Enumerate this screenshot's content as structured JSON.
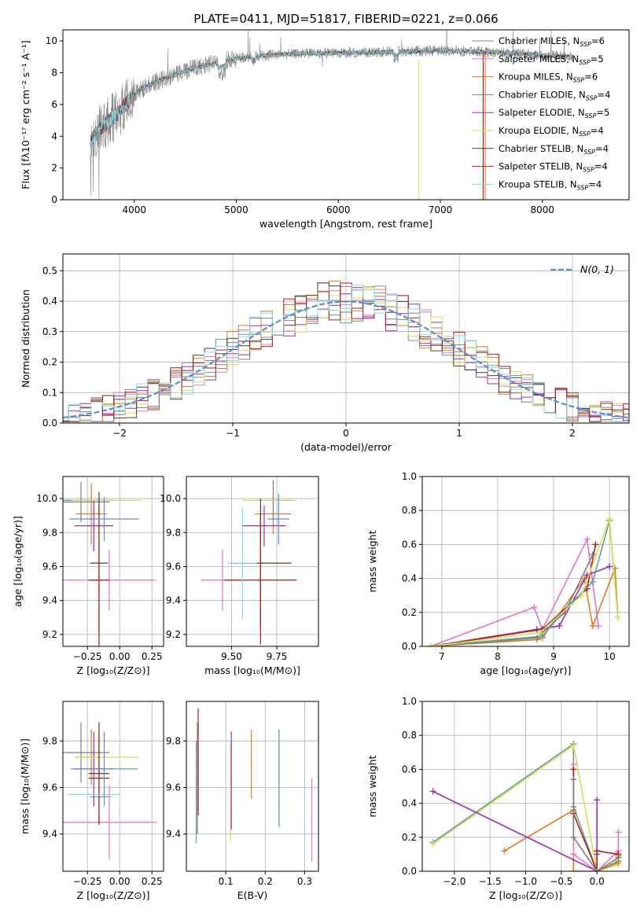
{
  "figure_title": "PLATE=0411, MJD=51817, FIBERID=0221, z=0.066",
  "colors": {
    "chabrier_miles": "#5f9ea0",
    "salpeter_miles": "#e377c2",
    "kroupa_miles": "#e07b20",
    "chabrier_elodie": "#7f7f7f",
    "salpeter_elodie": "#9b30b5",
    "kroupa_elodie": "#d4e157",
    "chabrier_stelib": "#5a3a22",
    "salpeter_stelib": "#b01c1c",
    "kroupa_stelib": "#80deea",
    "normal": "#5b8dd6",
    "grid": "#b0b0b0"
  },
  "chart_data": [
    {
      "id": "spectrum",
      "type": "line",
      "title": "PLATE=0411, MJD=51817, FIBERID=0221, z=0.066",
      "xlabel": "wavelength [Angstrom, rest frame]",
      "ylabel": "Flux [fλ10⁻¹⁷ erg cm⁻² s⁻¹ A⁻¹]",
      "xlim": [
        3300,
        8850
      ],
      "ylim": [
        0,
        10.7
      ],
      "xticks": [
        "4000",
        "5000",
        "6000",
        "7000",
        "8000"
      ],
      "yticks": [
        "0",
        "2",
        "4",
        "6",
        "8",
        "10"
      ],
      "grid": false,
      "legend_position": "top-right",
      "data_range": [
        3570,
        8300
      ],
      "continuum_x": [
        3570,
        3650,
        3750,
        3850,
        3950,
        4050,
        4200,
        4400,
        4600,
        4800,
        5000,
        5300,
        5600,
        6000,
        6500,
        7000,
        7500,
        8000,
        8300
      ],
      "continuum_y": [
        3.6,
        4.4,
        4.9,
        5.5,
        6.3,
        6.9,
        7.4,
        7.9,
        8.3,
        8.6,
        8.9,
        9.1,
        9.2,
        9.25,
        9.3,
        9.4,
        9.3,
        9.1,
        9.0
      ],
      "series": [
        {
          "label": "Chabrier MILES, N",
          "sub": "SSP",
          "value": "=6",
          "color_key": "chabrier_miles"
        },
        {
          "label": "Salpeter MILES, N",
          "sub": "SSP",
          "value": "=5",
          "color_key": "salpeter_miles"
        },
        {
          "label": "Kroupa MILES, N",
          "sub": "SSP",
          "value": "=6",
          "color_key": "kroupa_miles"
        },
        {
          "label": "Chabrier ELODIE, N",
          "sub": "SSP",
          "value": "=4",
          "color_key": "chabrier_elodie"
        },
        {
          "label": "Salpeter ELODIE, N",
          "sub": "SSP",
          "value": "=5",
          "color_key": "salpeter_elodie"
        },
        {
          "label": "Kroupa ELODIE, N",
          "sub": "SSP",
          "value": "=4",
          "color_key": "kroupa_elodie"
        },
        {
          "label": "Chabrier STELIB, N",
          "sub": "SSP",
          "value": "=4",
          "color_key": "chabrier_stelib"
        },
        {
          "label": "Salpeter STELIB, N",
          "sub": "SSP",
          "value": "=4",
          "color_key": "salpeter_stelib"
        },
        {
          "label": "Kroupa STELIB, N",
          "sub": "SSP",
          "value": "=4",
          "color_key": "kroupa_stelib"
        }
      ]
    },
    {
      "id": "residuals",
      "type": "bar",
      "xlabel": "(data-model)/error",
      "ylabel": "Normed distribution",
      "xlim": [
        -2.5,
        2.5
      ],
      "ylim": [
        0,
        0.555
      ],
      "xticks": [
        "−2",
        "−1",
        "0",
        "1",
        "2"
      ],
      "yticks": [
        "0.0",
        "0.1",
        "0.2",
        "0.3",
        "0.4",
        "0.5"
      ],
      "grid": true,
      "legend_position": "top-right",
      "legend_label": "N(0, 1)",
      "bin_width": 0.1
    },
    {
      "id": "age_vs_Z",
      "type": "scatter",
      "xlabel": "Z [log₁₀(Z/Z⊙)]",
      "ylabel": "age  [log₁₀(age/yr)]",
      "xlim": [
        -0.44,
        0.34
      ],
      "ylim": [
        9.13,
        10.13
      ],
      "xticks": [
        "−0.25",
        "0.00",
        "0.25"
      ],
      "yticks": [
        "9.2",
        "9.4",
        "9.6",
        "9.8",
        "10.0"
      ],
      "grid": true,
      "points": [
        {
          "color_key": "chabrier_miles",
          "x": -0.3,
          "y": 9.99,
          "xerr": 0.25,
          "yerr": 0.0
        },
        {
          "color_key": "salpeter_miles",
          "x": -0.08,
          "y": 9.52,
          "xerr": 0.36,
          "yerr": 0.18
        },
        {
          "color_key": "kroupa_miles",
          "x": -0.22,
          "y": 9.91,
          "xerr": 0.12,
          "yerr": 0.18
        },
        {
          "color_key": "chabrier_elodie",
          "x": -0.3,
          "y": 9.98,
          "xerr": 0.22,
          "yerr": 0.12
        },
        {
          "color_key": "salpeter_elodie",
          "x": -0.2,
          "y": 9.84,
          "xerr": 0.15,
          "yerr": 0.15
        },
        {
          "color_key": "kroupa_elodie",
          "x": -0.1,
          "y": 9.99,
          "xerr": 0.27,
          "yerr": 0.0
        },
        {
          "color_key": "chabrier_stelib",
          "x": -0.16,
          "y": 9.62,
          "xerr": 0.07,
          "yerr": 0.42
        },
        {
          "color_key": "salpeter_stelib",
          "x": -0.16,
          "y": 9.52,
          "xerr": 0.08,
          "yerr": 0.44
        },
        {
          "color_key": "normal",
          "x": -0.12,
          "y": 9.88,
          "xerr": 0.27,
          "yerr": 0.13
        }
      ]
    },
    {
      "id": "age_vs_mass",
      "type": "scatter",
      "xlabel": "mass [log₁₀(M/M⊙)]",
      "xlim": [
        9.25,
        9.98
      ],
      "ylim": [
        9.13,
        10.13
      ],
      "xticks": [
        "9.50",
        "9.75"
      ],
      "yticks": [
        "9.2",
        "9.4",
        "9.6",
        "9.8",
        "10.0"
      ],
      "grid": true,
      "points": [
        {
          "color_key": "salpeter_miles",
          "x": 9.45,
          "y": 9.52,
          "xerr": 0.12,
          "yerr": 0.18
        },
        {
          "color_key": "kroupa_miles",
          "x": 9.73,
          "y": 9.91,
          "xerr": 0.1,
          "yerr": 0.12
        },
        {
          "color_key": "chabrier_elodie",
          "x": 9.73,
          "y": 9.99,
          "xerr": 0.1,
          "yerr": 0.12
        },
        {
          "color_key": "salpeter_elodie",
          "x": 9.68,
          "y": 9.84,
          "xerr": 0.12,
          "yerr": 0.12
        },
        {
          "color_key": "kroupa_elodie",
          "x": 9.71,
          "y": 9.99,
          "xerr": 0.15,
          "yerr": 0.0
        },
        {
          "color_key": "chabrier_stelib",
          "x": 9.66,
          "y": 9.62,
          "xerr": 0.17,
          "yerr": 0.38
        },
        {
          "color_key": "salpeter_stelib",
          "x": 9.66,
          "y": 9.52,
          "xerr": 0.2,
          "yerr": 0.38
        },
        {
          "color_key": "normal",
          "x": 9.76,
          "y": 9.88,
          "xerr": 0.06,
          "yerr": 0.15
        },
        {
          "color_key": "kroupa_stelib",
          "x": 9.56,
          "y": 9.62,
          "xerr": 0.08,
          "yerr": 0.33
        }
      ]
    },
    {
      "id": "mass_weight_vs_age",
      "type": "line",
      "xlabel": "age  [log₁₀(age/yr)]",
      "ylabel": "mass weight",
      "xlim": [
        6.65,
        10.35
      ],
      "ylim": [
        0,
        1
      ],
      "xticks": [
        "7",
        "8",
        "9",
        "10"
      ],
      "yticks": [
        "0.0",
        "0.2",
        "0.4",
        "0.6",
        "0.8",
        "1.0"
      ],
      "grid": true,
      "series": [
        {
          "color_key": "salpeter_miles",
          "x": [
            6.8,
            8.65,
            8.8,
            9.6,
            9.8
          ],
          "y": [
            0.0,
            0.23,
            0.1,
            0.63,
            0.12
          ]
        },
        {
          "color_key": "kroupa_miles",
          "x": [
            6.8,
            8.7,
            8.8,
            9.55,
            9.7,
            10.1,
            10.15
          ],
          "y": [
            0.0,
            0.04,
            0.05,
            0.4,
            0.12,
            0.46,
            0.17
          ]
        },
        {
          "color_key": "salpeter_elodie",
          "x": [
            6.8,
            8.7,
            9.1,
            9.6,
            10.0
          ],
          "y": [
            0.0,
            0.1,
            0.12,
            0.42,
            0.47
          ]
        },
        {
          "color_key": "salpeter_stelib",
          "x": [
            6.8,
            8.8,
            9.6,
            9.75
          ],
          "y": [
            0.0,
            0.1,
            0.34,
            0.6
          ]
        },
        {
          "color_key": "chabrier_elodie",
          "x": [
            6.8,
            8.7,
            9.2,
            9.7
          ],
          "y": [
            0.0,
            0.05,
            0.2,
            0.54
          ]
        },
        {
          "color_key": "chabrier_miles",
          "x": [
            6.8,
            8.8,
            9.3,
            9.7,
            10.0,
            10.15
          ],
          "y": [
            0.0,
            0.06,
            0.25,
            0.38,
            0.74,
            0.17
          ]
        },
        {
          "color_key": "kroupa_elodie",
          "x": [
            6.8,
            8.75,
            9.5,
            10.0,
            10.15
          ],
          "y": [
            0.0,
            0.08,
            0.3,
            0.75,
            0.17
          ]
        }
      ]
    },
    {
      "id": "mass_vs_Z",
      "type": "scatter",
      "xlabel": "Z [log₁₀(Z/Z⊙)]",
      "ylabel": "mass [log₁₀(M/M⊙)]",
      "xlim": [
        -0.44,
        0.34
      ],
      "ylim": [
        9.24,
        9.97
      ],
      "xticks": [
        "−0.25",
        "0.00",
        "0.25"
      ],
      "yticks": [
        "9.4",
        "9.6",
        "9.8"
      ],
      "grid": true,
      "points": [
        {
          "color_key": "chabrier_miles",
          "x": -0.15,
          "y": 9.56,
          "xerr": 0.08,
          "yerr": 0.0
        },
        {
          "color_key": "salpeter_miles",
          "x": -0.08,
          "y": 9.45,
          "xerr": 0.37,
          "yerr": 0.16
        },
        {
          "color_key": "kroupa_miles",
          "x": -0.22,
          "y": 9.73,
          "xerr": 0.12,
          "yerr": 0.12
        },
        {
          "color_key": "chabrier_elodie",
          "x": -0.3,
          "y": 9.75,
          "xerr": 0.22,
          "yerr": 0.13
        },
        {
          "color_key": "salpeter_elodie",
          "x": -0.2,
          "y": 9.68,
          "xerr": 0.15,
          "yerr": 0.16
        },
        {
          "color_key": "kroupa_elodie",
          "x": -0.1,
          "y": 9.73,
          "xerr": 0.25,
          "yerr": 0.0
        },
        {
          "color_key": "chabrier_stelib",
          "x": -0.16,
          "y": 9.66,
          "xerr": 0.08,
          "yerr": 0.22
        },
        {
          "color_key": "salpeter_stelib",
          "x": -0.16,
          "y": 9.64,
          "xerr": 0.08,
          "yerr": 0.2
        },
        {
          "color_key": "normal",
          "x": -0.12,
          "y": 9.68,
          "xerr": 0.26,
          "yerr": 0.16
        },
        {
          "color_key": "kroupa_stelib",
          "x": -0.2,
          "y": 9.57,
          "xerr": 0.2,
          "yerr": 0.0
        }
      ]
    },
    {
      "id": "mass_vs_EBV",
      "type": "scatter",
      "xlabel": "E(B-V)",
      "xlim": [
        0.0,
        0.335
      ],
      "ylim": [
        9.24,
        9.97
      ],
      "xticks": [
        "0.1",
        "0.2",
        "0.3"
      ],
      "yticks": [
        "9.4",
        "9.6",
        "9.8"
      ],
      "grid": true,
      "points": [
        {
          "color_key": "chabrier_miles",
          "x": 0.025,
          "y": 9.58,
          "yerr": 0.22
        },
        {
          "color_key": "salpeter_stelib",
          "x": 0.03,
          "y": 9.71,
          "yerr": 0.23
        },
        {
          "color_key": "chabrier_elodie",
          "x": 0.028,
          "y": 9.64,
          "yerr": 0.24
        },
        {
          "color_key": "kroupa_elodie",
          "x": 0.112,
          "y": 9.58,
          "yerr": 0.21
        },
        {
          "color_key": "salpeter_elodie",
          "x": 0.114,
          "y": 9.63,
          "yerr": 0.21
        },
        {
          "color_key": "kroupa_miles",
          "x": 0.165,
          "y": 9.7,
          "yerr": 0.15
        },
        {
          "color_key": "normal",
          "x": 0.235,
          "y": 9.64,
          "yerr": 0.21
        },
        {
          "color_key": "salpeter_miles",
          "x": 0.318,
          "y": 9.46,
          "yerr": 0.18
        }
      ]
    },
    {
      "id": "mass_weight_vs_Z",
      "type": "line",
      "xlabel": "Z [log₁₀(Z/Z⊙)]",
      "ylabel": "mass weight",
      "xlim": [
        -2.45,
        0.45
      ],
      "ylim": [
        0,
        1
      ],
      "xticks": [
        "−2.0",
        "−1.5",
        "−1.0",
        "−0.5",
        "0.0"
      ],
      "yticks": [
        "0.0",
        "0.2",
        "0.4",
        "0.6",
        "0.8",
        "1.0"
      ],
      "grid": true,
      "series": [
        {
          "color_key": "chabrier_miles",
          "x": [
            -2.3,
            -0.33,
            -0.33,
            0.0,
            0.3,
            0.3
          ],
          "y": [
            0.17,
            0.75,
            0.38,
            0.0,
            0.06,
            0.1
          ]
        },
        {
          "color_key": "kroupa_elodie",
          "x": [
            -2.3,
            -0.33,
            0.0,
            0.3
          ],
          "y": [
            0.16,
            0.74,
            0.0,
            0.04
          ]
        },
        {
          "color_key": "kroupa_miles",
          "x": [
            -1.3,
            -0.33,
            -0.33,
            0.0,
            0.3,
            0.3
          ],
          "y": [
            0.12,
            0.36,
            0.0,
            0.0,
            0.05,
            0.09
          ]
        },
        {
          "color_key": "salpeter_elodie",
          "x": [
            -2.3,
            0.0,
            0.0,
            0.0
          ],
          "y": [
            0.47,
            0.0,
            0.42,
            0.1
          ]
        },
        {
          "color_key": "salpeter_miles",
          "x": [
            -0.33,
            -0.33,
            0.0,
            0.3,
            0.3
          ],
          "y": [
            0.63,
            0.1,
            0.0,
            0.12,
            0.23
          ]
        },
        {
          "color_key": "salpeter_stelib",
          "x": [
            -0.33,
            -0.33,
            0.0,
            0.0,
            0.3
          ],
          "y": [
            0.6,
            0.34,
            0.0,
            0.12,
            0.1
          ]
        },
        {
          "color_key": "chabrier_elodie",
          "x": [
            -0.33,
            -0.33,
            0.0,
            0.3
          ],
          "y": [
            0.54,
            0.2,
            0.0,
            0.08
          ]
        }
      ]
    }
  ]
}
